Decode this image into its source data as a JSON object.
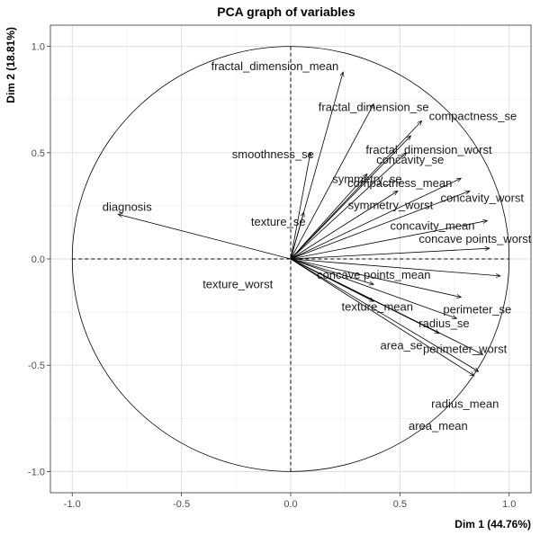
{
  "chart_data": {
    "type": "scatter",
    "title": "PCA graph of variables",
    "xlabel": "Dim 1 (44.76%)",
    "ylabel": "Dim 2 (18.81%)",
    "xlim": [
      -1.1,
      1.1
    ],
    "ylim": [
      -1.1,
      1.1
    ],
    "xticks": [
      "-1.0",
      "-0.5",
      "0.0",
      "0.5",
      "1.0"
    ],
    "yticks": [
      "-1.0",
      "-0.5",
      "0.0",
      "0.5",
      "1.0"
    ],
    "grid": true,
    "unit_circle": true,
    "variables": [
      {
        "name": "fractal_dimension_mean",
        "x": 0.24,
        "y": 0.88
      },
      {
        "name": "fractal_dimension_se",
        "x": 0.38,
        "y": 0.73
      },
      {
        "name": "compactness_se",
        "x": 0.6,
        "y": 0.65
      },
      {
        "name": "fractal_dimension_worst",
        "x": 0.55,
        "y": 0.58
      },
      {
        "name": "smoothness_se",
        "x": 0.09,
        "y": 0.5
      },
      {
        "name": "concavity_se",
        "x": 0.53,
        "y": 0.5
      },
      {
        "name": "compactness_mean",
        "x": 0.78,
        "y": 0.38
      },
      {
        "name": "symmetry_se",
        "x": 0.35,
        "y": 0.4
      },
      {
        "name": "concavity_worst",
        "x": 0.82,
        "y": 0.32
      },
      {
        "name": "symmetry_worst",
        "x": 0.49,
        "y": 0.32
      },
      {
        "name": "concavity_mean",
        "x": 0.9,
        "y": 0.18
      },
      {
        "name": "texture_se",
        "x": 0.06,
        "y": 0.22
      },
      {
        "name": "concave points_worst",
        "x": 0.91,
        "y": 0.05
      },
      {
        "name": "diagnosis",
        "x": -0.79,
        "y": 0.21
      },
      {
        "name": "texture_worst",
        "x": 0.38,
        "y": -0.12
      },
      {
        "name": "concave points_mean",
        "x": 0.96,
        "y": -0.08
      },
      {
        "name": "perimeter_se",
        "x": 0.78,
        "y": -0.18
      },
      {
        "name": "texture_mean",
        "x": 0.38,
        "y": -0.2
      },
      {
        "name": "radius_se",
        "x": 0.76,
        "y": -0.28
      },
      {
        "name": "area_se",
        "x": 0.68,
        "y": -0.35
      },
      {
        "name": "perimeter_worst",
        "x": 0.88,
        "y": -0.45
      },
      {
        "name": "radius_mean",
        "x": 0.86,
        "y": -0.53
      },
      {
        "name": "area_mean",
        "x": 0.84,
        "y": -0.55
      }
    ]
  }
}
